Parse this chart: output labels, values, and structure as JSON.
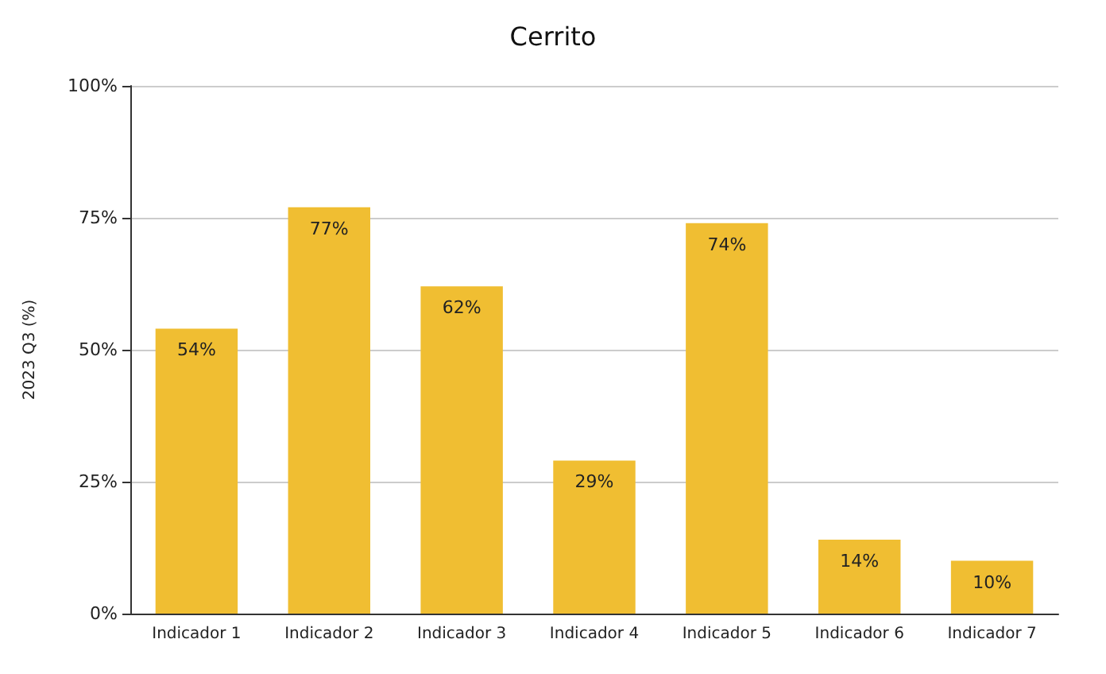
{
  "chart_data": {
    "type": "bar",
    "title": "Cerrito",
    "ylabel": "2023 Q3 (%)",
    "categories": [
      "Indicador 1",
      "Indicador 2",
      "Indicador 3",
      "Indicador 4",
      "Indicador 5",
      "Indicador 6",
      "Indicador 7"
    ],
    "values": [
      54,
      77,
      62,
      29,
      74,
      14,
      10
    ],
    "value_labels": [
      "54%",
      "77%",
      "62%",
      "29%",
      "74%",
      "14%",
      "10%"
    ],
    "color": "#f0be32",
    "ylim": [
      0,
      100
    ],
    "yticks": [
      {
        "value": 0,
        "label": "0%"
      },
      {
        "value": 25,
        "label": "25%"
      },
      {
        "value": 50,
        "label": "50%"
      },
      {
        "value": 75,
        "label": "75%"
      },
      {
        "value": 100,
        "label": "100%"
      }
    ],
    "grid": "y"
  }
}
